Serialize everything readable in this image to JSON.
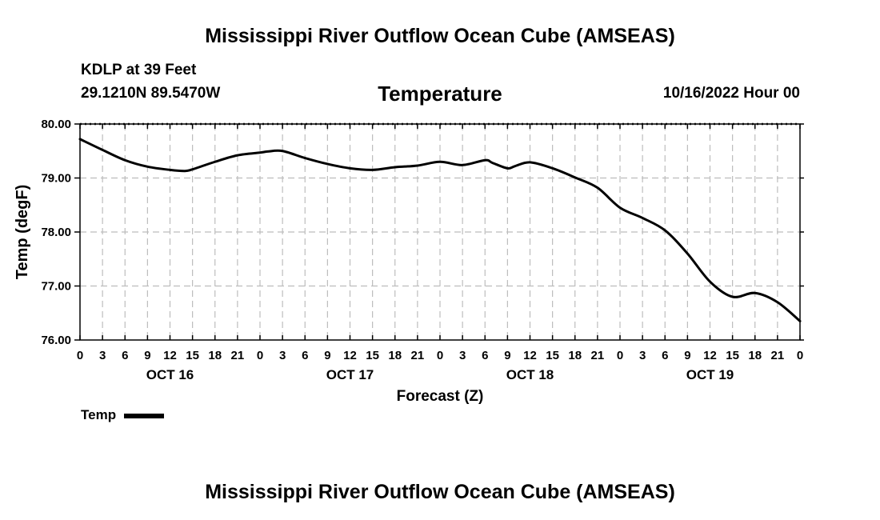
{
  "header": {
    "title": "Mississippi River Outflow Ocean Cube (AMSEAS)",
    "station": "KDLP at 39 Feet",
    "coordinates": "29.1210N  89.5470W",
    "chart_title": "Temperature",
    "date": "10/16/2022 Hour 00"
  },
  "footer": {
    "title": "Mississippi River Outflow Ocean Cube (AMSEAS)"
  },
  "legend": {
    "label": "Temp"
  },
  "chart_data": {
    "type": "line",
    "title": "Temperature",
    "xlabel": "Forecast (Z)",
    "ylabel": "Temp (degF)",
    "xlim": [
      0,
      96
    ],
    "ylim": [
      76.0,
      80.0
    ],
    "grid": true,
    "y_ticks": [
      "80.00",
      "79.00",
      "78.00",
      "77.00",
      "76.00"
    ],
    "x_ticks": [
      "0",
      "3",
      "6",
      "9",
      "12",
      "15",
      "18",
      "21",
      "0",
      "3",
      "6",
      "9",
      "12",
      "15",
      "18",
      "21",
      "0",
      "3",
      "6",
      "9",
      "12",
      "15",
      "18",
      "21",
      "0",
      "3",
      "6",
      "9",
      "12",
      "15",
      "18",
      "21",
      "0"
    ],
    "day_labels": [
      {
        "hour": 12,
        "label": "OCT 16"
      },
      {
        "hour": 36,
        "label": "OCT 17"
      },
      {
        "hour": 60,
        "label": "OCT 18"
      },
      {
        "hour": 84,
        "label": "OCT 19"
      }
    ],
    "series": [
      {
        "name": "Temp",
        "color": "#000000",
        "x": [
          0,
          3,
          6,
          9,
          12,
          14,
          15,
          18,
          21,
          24,
          25,
          27,
          30,
          33,
          36,
          39,
          42,
          45,
          48,
          51,
          54,
          55,
          57,
          58,
          60,
          63,
          66,
          69,
          72,
          75,
          78,
          81,
          84,
          87,
          90,
          93,
          96
        ],
        "values": [
          79.72,
          79.52,
          79.33,
          79.21,
          79.15,
          79.13,
          79.16,
          79.3,
          79.42,
          79.47,
          79.49,
          79.5,
          79.37,
          79.26,
          79.18,
          79.15,
          79.2,
          79.23,
          79.3,
          79.24,
          79.33,
          79.28,
          79.18,
          79.22,
          79.29,
          79.18,
          79.01,
          78.82,
          78.45,
          78.26,
          78.03,
          77.6,
          77.08,
          76.8,
          76.87,
          76.7,
          76.35
        ]
      }
    ]
  }
}
